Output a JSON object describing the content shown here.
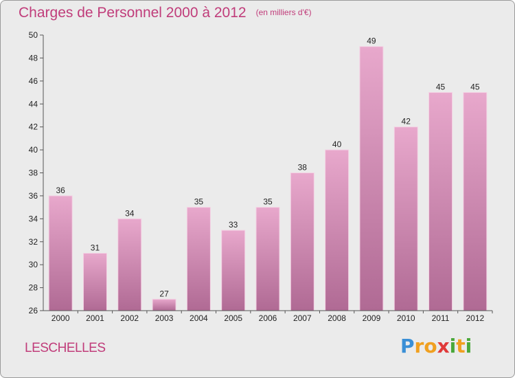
{
  "chart_data": {
    "type": "bar",
    "title": "Charges de Personnel 2000 à 2012",
    "subtitle": "(en milliers d'€)",
    "categories": [
      "2000",
      "2001",
      "2002",
      "2003",
      "2004",
      "2005",
      "2006",
      "2007",
      "2008",
      "2009",
      "2010",
      "2011",
      "2012"
    ],
    "values": [
      36,
      31,
      34,
      27,
      35,
      33,
      35,
      38,
      40,
      49,
      42,
      45,
      45
    ],
    "ylim": [
      26,
      50
    ],
    "yticks": [
      26,
      28,
      30,
      32,
      34,
      36,
      38,
      40,
      42,
      44,
      46,
      48,
      50
    ],
    "grid": false,
    "legend": "none",
    "colors": {
      "bar_top": "#e8a8cc",
      "bar_bottom": "#b06a94",
      "bar_edge": "#f4d2e4",
      "title": "#c03c7a",
      "background": "#ebebeb",
      "axis": "#555555"
    }
  },
  "footer": {
    "place": "LESCHELLES",
    "brand_letters": [
      "P",
      "r",
      "o",
      "x",
      "i",
      "t",
      "i"
    ],
    "brand_colors": [
      "#3a8fd6",
      "#f0a020",
      "#f0a020",
      "#e03a3a",
      "#4aa83a",
      "#f0a020",
      "#4aa83a"
    ]
  }
}
